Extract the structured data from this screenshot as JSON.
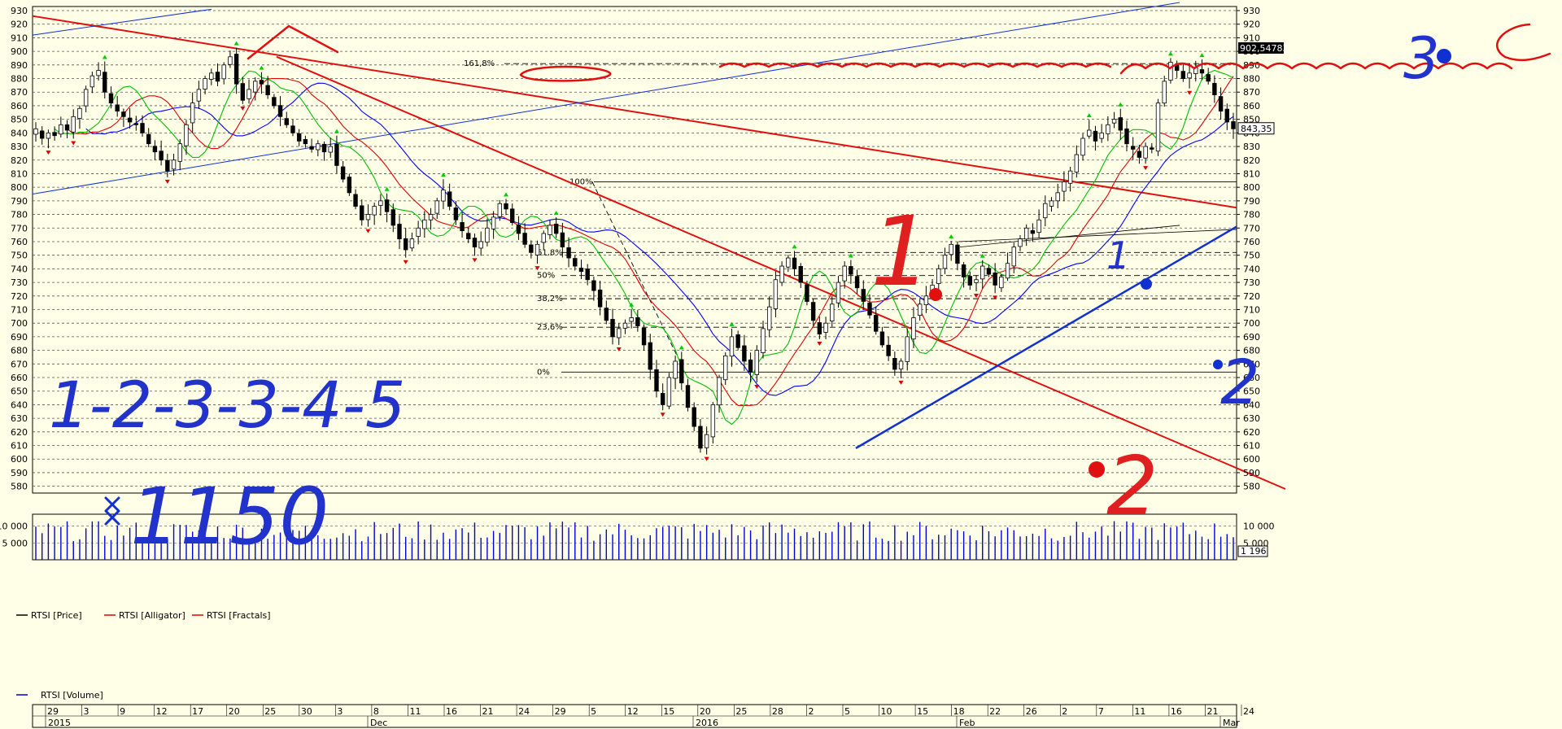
{
  "chart_data": {
    "type": "candlestick",
    "instrument": "RTSI",
    "price_axis": {
      "ticks": [
        580,
        590,
        600,
        610,
        620,
        630,
        640,
        650,
        660,
        670,
        680,
        690,
        700,
        710,
        720,
        730,
        740,
        750,
        760,
        770,
        780,
        790,
        800,
        810,
        820,
        830,
        840,
        850,
        860,
        870,
        880,
        890,
        900,
        910,
        920,
        930
      ],
      "range": [
        575,
        933
      ],
      "current_price_label": "843,35",
      "marker_label": "902,54783"
    },
    "volume_axis": {
      "ticks": [
        {
          "value": 5000,
          "label": "5 000"
        },
        {
          "value": 10000,
          "label": "10 000"
        }
      ],
      "range": [
        0,
        13500
      ],
      "current_label": "1 196"
    },
    "legend": [
      {
        "name": "RTSI [Price]",
        "color": "#000000"
      },
      {
        "name": "RTSI [Alligator]",
        "color": "#e00000"
      },
      {
        "name": "RTSI [Fractals]",
        "color": "#e00000"
      }
    ],
    "volume_legend": {
      "name": "RTSI [Volume]",
      "color": "#0000dd"
    },
    "date_axis": {
      "day_labels": [
        "29",
        "3",
        "9",
        "12",
        "17",
        "20",
        "25",
        "30",
        "3",
        "8",
        "11",
        "16",
        "21",
        "24",
        "29",
        "5",
        "12",
        "15",
        "20",
        "25",
        "28",
        "2",
        "5",
        "10",
        "15",
        "18",
        "22",
        "26",
        "2",
        "7",
        "11",
        "16",
        "21",
        "24"
      ],
      "month_labels": [
        {
          "label": "2015",
          "row": "bottom",
          "at": "29"
        },
        {
          "label": "Dec",
          "row": "bottom",
          "at": "3"
        },
        {
          "label": "2016",
          "row": "bottom",
          "at": "5"
        },
        {
          "label": "Feb",
          "row": "bottom",
          "at": "2"
        },
        {
          "label": "Mar",
          "row": "bottom",
          "at": "2"
        }
      ]
    },
    "fib_levels": [
      {
        "label": "161,8%",
        "price": 891
      },
      {
        "label": "100%",
        "price": 804
      },
      {
        "label": "61,8%",
        "price": 752
      },
      {
        "label": "50%",
        "price": 735
      },
      {
        "label": "38,2%",
        "price": 718
      },
      {
        "label": "23,6%",
        "price": 697
      },
      {
        "label": "0%",
        "price": 664
      }
    ],
    "series_close": [
      843,
      836,
      840,
      838,
      846,
      842,
      852,
      858,
      872,
      882,
      886,
      870,
      862,
      856,
      852,
      848,
      846,
      840,
      832,
      826,
      820,
      812,
      820,
      832,
      846,
      862,
      872,
      880,
      884,
      878,
      890,
      896,
      876,
      864,
      872,
      878,
      876,
      868,
      860,
      852,
      846,
      840,
      834,
      832,
      828,
      832,
      826,
      830,
      816,
      806,
      796,
      786,
      776,
      780,
      786,
      790,
      782,
      772,
      762,
      754,
      762,
      770,
      776,
      780,
      790,
      798,
      786,
      776,
      768,
      762,
      756,
      760,
      770,
      778,
      788,
      784,
      774,
      766,
      758,
      752,
      758,
      766,
      772,
      766,
      756,
      748,
      742,
      738,
      732,
      724,
      712,
      702,
      690,
      696,
      700,
      704,
      698,
      684,
      666,
      650,
      640,
      660,
      672,
      656,
      638,
      624,
      608,
      618,
      640,
      660,
      676,
      690,
      682,
      672,
      664,
      680,
      696,
      712,
      732,
      742,
      748,
      740,
      730,
      716,
      702,
      692,
      700,
      714,
      730,
      742,
      736,
      726,
      716,
      706,
      694,
      684,
      676,
      666,
      672,
      690,
      704,
      714,
      720,
      728,
      740,
      750,
      758,
      744,
      734,
      728,
      732,
      742,
      736,
      728,
      734,
      744,
      756,
      762,
      770,
      766,
      776,
      788,
      790,
      796,
      804,
      812,
      824,
      836,
      842,
      834,
      840,
      846,
      850,
      842,
      832,
      828,
      822,
      830,
      828,
      862,
      878,
      892,
      886,
      880,
      884,
      888,
      884,
      878,
      868,
      856,
      848,
      843
    ],
    "annotations": [
      {
        "text": "1-2-3-3-4-5",
        "color": "#2233cc"
      },
      {
        "text": "1150",
        "color": "#2233cc"
      },
      {
        "text": "1",
        "color": "#e02020"
      },
      {
        "text": "2",
        "color": "#e02020"
      },
      {
        "text": "1",
        "color": "#2233cc"
      },
      {
        "text": "2",
        "color": "#2233cc"
      },
      {
        "text": "3",
        "color": "#2233cc"
      }
    ],
    "colors": {
      "background": "#ffffe8",
      "grid": "#555555",
      "candle": "#000000",
      "alligator_jaw": "#0000ff",
      "alligator_teeth": "#e00000",
      "alligator_lips": "#00c000",
      "fractal_up": "#00cc00",
      "fractal_down": "#dd0000",
      "trend_red": "#e01010",
      "trend_blue": "#1030d0",
      "volume": "#0000dd"
    }
  }
}
